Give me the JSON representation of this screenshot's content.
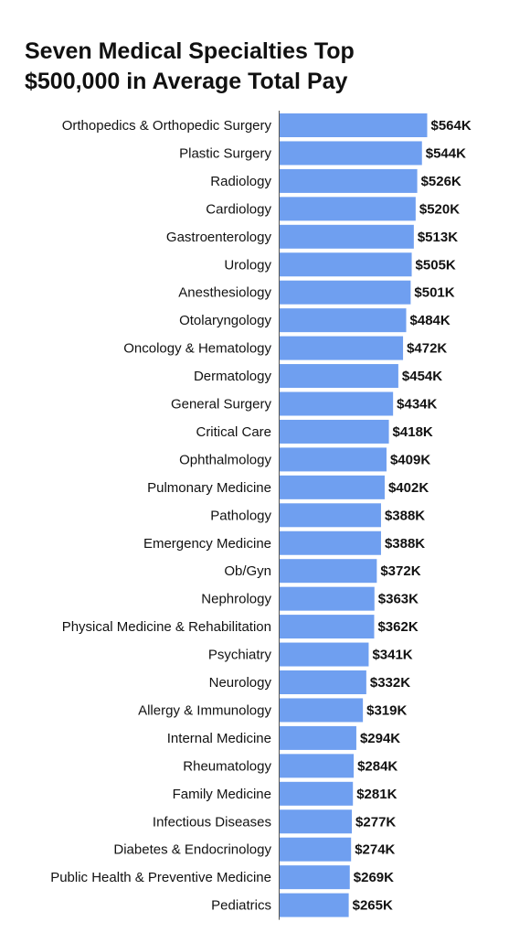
{
  "chart_data": {
    "type": "bar",
    "orientation": "horizontal",
    "title_lines": [
      "Seven Medical Specialties Top",
      "$500,000 in Average Total Pay"
    ],
    "categories": [
      "Orthopedics & Orthopedic Surgery",
      "Plastic Surgery",
      "Radiology",
      "Cardiology",
      "Gastroenterology",
      "Urology",
      "Anesthesiology",
      "Otolaryngology",
      "Oncology & Hematology",
      "Dermatology",
      "General Surgery",
      "Critical Care",
      "Ophthalmology",
      "Pulmonary Medicine",
      "Pathology",
      "Emergency Medicine",
      "Ob/Gyn",
      "Nephrology",
      "Physical Medicine & Rehabilitation",
      "Psychiatry",
      "Neurology",
      "Allergy & Immunology",
      "Internal Medicine",
      "Rheumatology",
      "Family Medicine",
      "Infectious Diseases",
      "Diabetes & Endocrinology",
      "Public Health & Preventive Medicine",
      "Pediatrics"
    ],
    "values": [
      564,
      544,
      526,
      520,
      513,
      505,
      501,
      484,
      472,
      454,
      434,
      418,
      409,
      402,
      388,
      388,
      372,
      363,
      362,
      341,
      332,
      319,
      294,
      284,
      281,
      277,
      274,
      269,
      265
    ],
    "value_labels": [
      "$564K",
      "$544K",
      "$526K",
      "$520K",
      "$513K",
      "$505K",
      "$501K",
      "$484K",
      "$472K",
      "$454K",
      "$434K",
      "$418K",
      "$409K",
      "$402K",
      "$388K",
      "$388K",
      "$372K",
      "$363K",
      "$362K",
      "$341K",
      "$332K",
      "$319K",
      "$294K",
      "$284K",
      "$281K",
      "$277K",
      "$274K",
      "$269K",
      "$265K"
    ],
    "xlim": [
      0,
      564
    ],
    "grid": false,
    "legend": "none",
    "bar_color": "#6f9ff0",
    "axis_color": "#555555"
  }
}
